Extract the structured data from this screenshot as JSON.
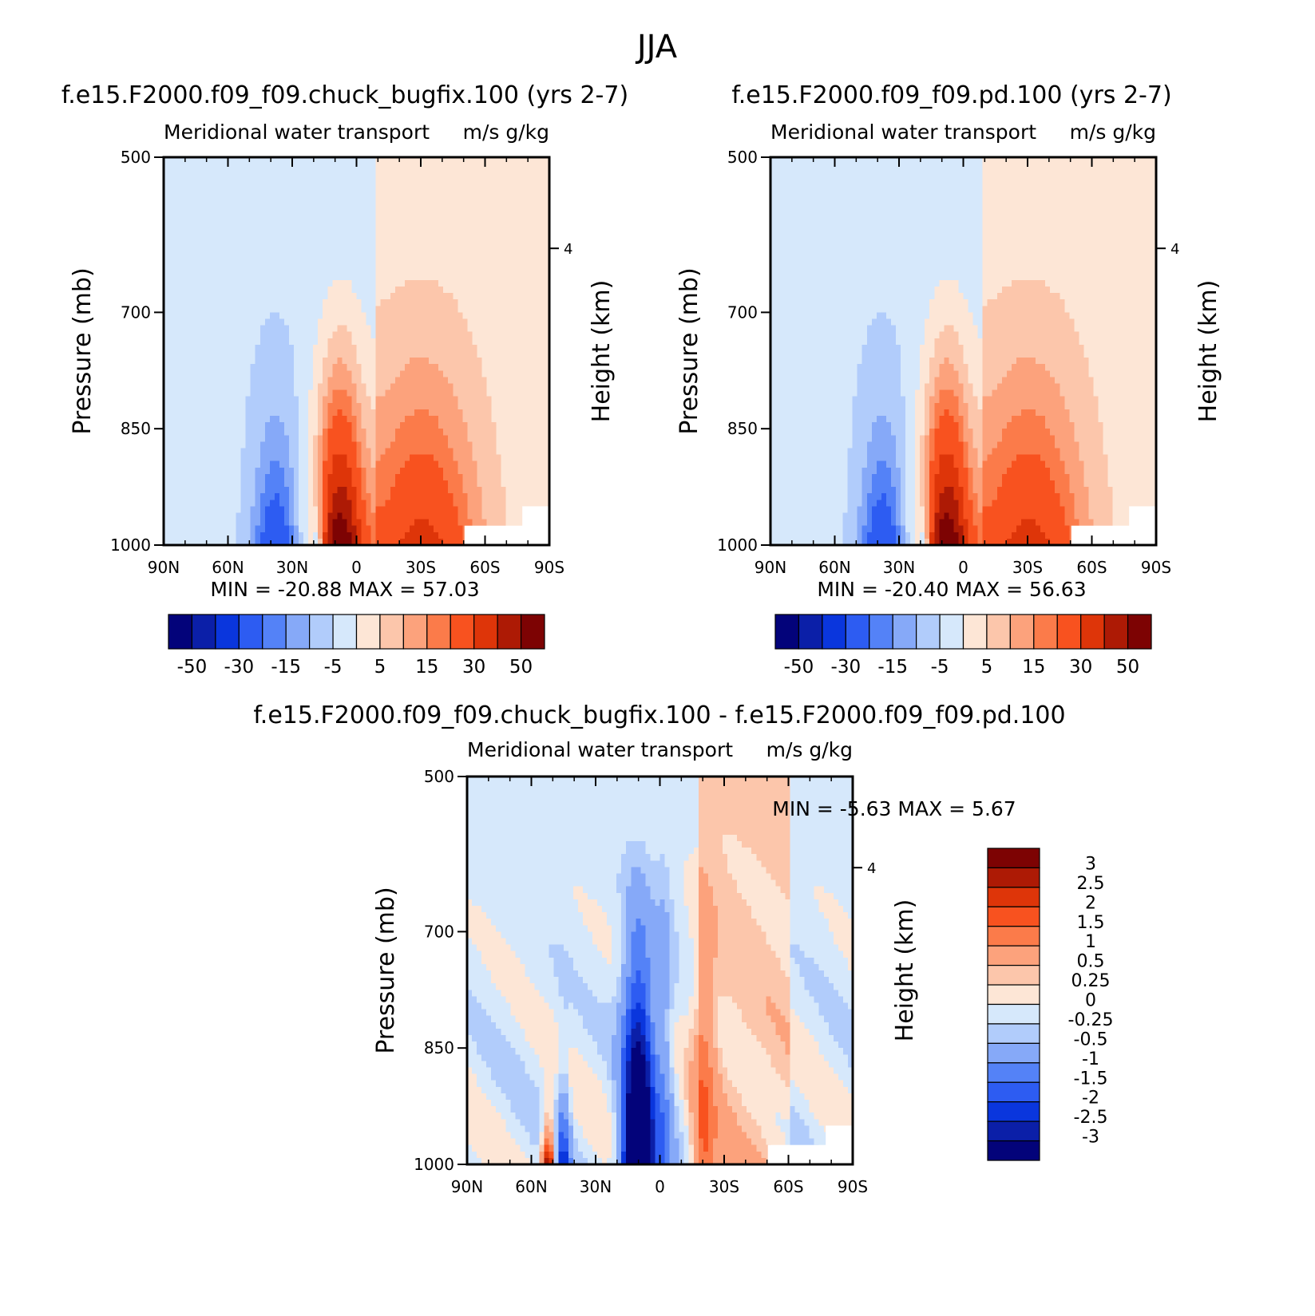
{
  "figure_title": "JJA",
  "colors": {
    "pos": [
      "#fde6d6",
      "#fcc6ab",
      "#fca27c",
      "#fb7b4a",
      "#f8521f",
      "#de3509",
      "#ad1a05",
      "#7d0303"
    ],
    "neg": [
      "#d6e8fb",
      "#b1ccfb",
      "#86a9f8",
      "#5482f7",
      "#2d5cf2",
      "#0a36dd",
      "#0b1fa8",
      "#03037a"
    ]
  },
  "chart_data": [
    {
      "type": "heatmap",
      "title": "f.e15.F2000.f09_f09.chuck_bugfix.100 (yrs 2-7)",
      "subtitle_left": "Meridional water transport",
      "subtitle_right": "m/s g/kg",
      "xlabel": "",
      "ylabel": "Pressure (mb)",
      "right_ylabel": "Height (km)",
      "x_ticks": [
        "90N",
        "60N",
        "30N",
        "0",
        "30S",
        "60S",
        "90S"
      ],
      "y_ticks": [
        "500",
        "700",
        "850",
        "1000"
      ],
      "y_tick_values": [
        500,
        700,
        850,
        1000
      ],
      "ylim": [
        500,
        1000
      ],
      "right_ticks": [
        "4"
      ],
      "stats": {
        "min_label": "MIN =",
        "min": "-20.88",
        "max_label": "MAX =",
        "max": "57.03"
      },
      "levels": [
        -50,
        -40,
        -30,
        -20,
        -15,
        -10,
        -5,
        0,
        5,
        10,
        15,
        20,
        30,
        40,
        50
      ],
      "colorbar_labels": [
        "-50",
        "-30",
        "-15",
        "-5",
        "5",
        "15",
        "30",
        "50"
      ],
      "field": {
        "pos_peak_lat": 8,
        "pos_peak_value": 57.03,
        "neg_peak_value": -20.88
      }
    },
    {
      "type": "heatmap",
      "title": "f.e15.F2000.f09_f09.pd.100 (yrs 2-7)",
      "subtitle_left": "Meridional water transport",
      "subtitle_right": "m/s g/kg",
      "xlabel": "",
      "ylabel": "Pressure (mb)",
      "right_ylabel": "Height (km)",
      "x_ticks": [
        "90N",
        "60N",
        "30N",
        "0",
        "30S",
        "60S",
        "90S"
      ],
      "y_ticks": [
        "500",
        "700",
        "850",
        "1000"
      ],
      "y_tick_values": [
        500,
        700,
        850,
        1000
      ],
      "ylim": [
        500,
        1000
      ],
      "right_ticks": [
        "4"
      ],
      "stats": {
        "min_label": "MIN =",
        "min": "-20.40",
        "max_label": "MAX =",
        "max": "56.63"
      },
      "levels": [
        -50,
        -40,
        -30,
        -20,
        -15,
        -10,
        -5,
        0,
        5,
        10,
        15,
        20,
        30,
        40,
        50
      ],
      "colorbar_labels": [
        "-50",
        "-30",
        "-15",
        "-5",
        "5",
        "15",
        "30",
        "50"
      ],
      "field": {
        "pos_peak_lat": 8,
        "pos_peak_value": 56.63,
        "neg_peak_value": -20.4
      }
    },
    {
      "type": "heatmap",
      "title": "f.e15.F2000.f09_f09.chuck_bugfix.100 - f.e15.F2000.f09_f09.pd.100",
      "subtitle_left": "Meridional water transport",
      "subtitle_right": "m/s g/kg",
      "xlabel": "",
      "ylabel": "Pressure (mb)",
      "right_ylabel": "Height (km)",
      "x_ticks": [
        "90N",
        "60N",
        "30N",
        "0",
        "30S",
        "60S",
        "90S"
      ],
      "y_ticks": [
        "500",
        "700",
        "850",
        "1000"
      ],
      "y_tick_values": [
        500,
        700,
        850,
        1000
      ],
      "ylim": [
        500,
        1000
      ],
      "right_ticks": [
        "4"
      ],
      "stats": {
        "min_label": "MIN =",
        "min": "-5.63",
        "max_label": "MAX =",
        "max": "5.67"
      },
      "levels": [
        -3,
        -2.5,
        -2,
        -1.5,
        -1,
        -0.5,
        -0.25,
        0,
        0.25,
        0.5,
        1,
        1.5,
        2,
        2.5,
        3
      ],
      "colorbar_labels": [
        "3",
        "2.5",
        "2",
        "1.5",
        "1",
        "0.5",
        "0.25",
        "0",
        "-0.25",
        "-0.5",
        "-1",
        "-1.5",
        "-2",
        "-2.5",
        "-3"
      ],
      "field": {
        "neg_peak_lat": 12,
        "neg_peak_value": -5.63,
        "pos_peak_value": 5.67
      }
    }
  ]
}
